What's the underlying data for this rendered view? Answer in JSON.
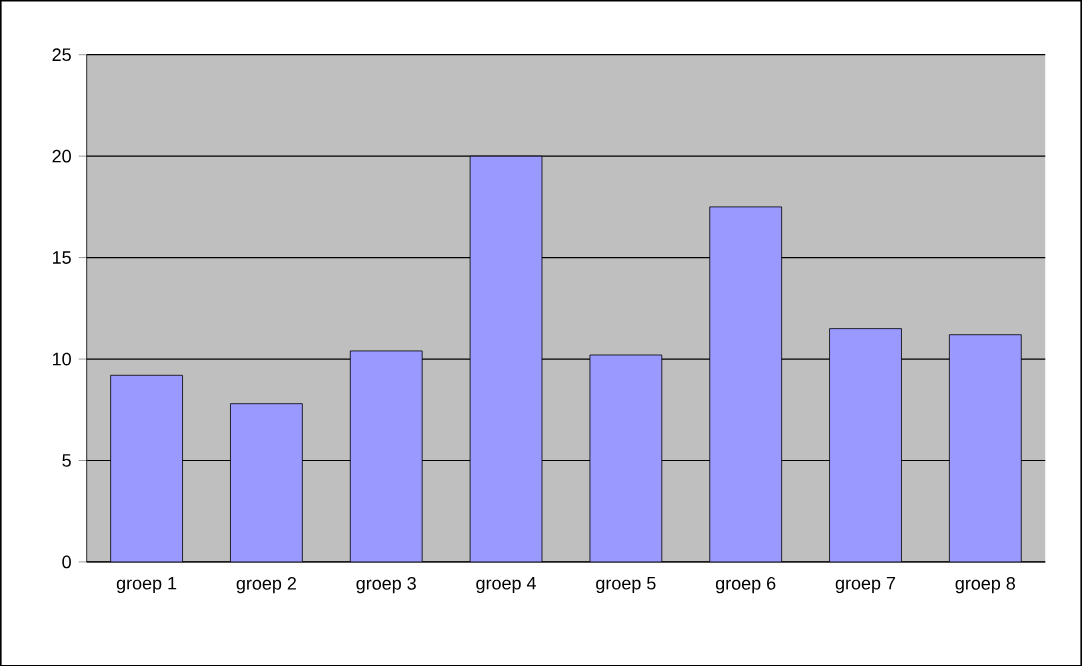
{
  "chart_data": {
    "type": "bar",
    "categories": [
      "groep 1",
      "groep 2",
      "groep 3",
      "groep 4",
      "groep 5",
      "groep 6",
      "groep 7",
      "groep 8"
    ],
    "values": [
      9.2,
      7.8,
      10.4,
      20,
      10.2,
      17.5,
      11.5,
      11.2
    ],
    "color": "#9999ff",
    "ylim": [
      0,
      25
    ],
    "yticks": [
      0,
      5,
      10,
      15,
      20,
      25
    ],
    "grid": "y"
  }
}
